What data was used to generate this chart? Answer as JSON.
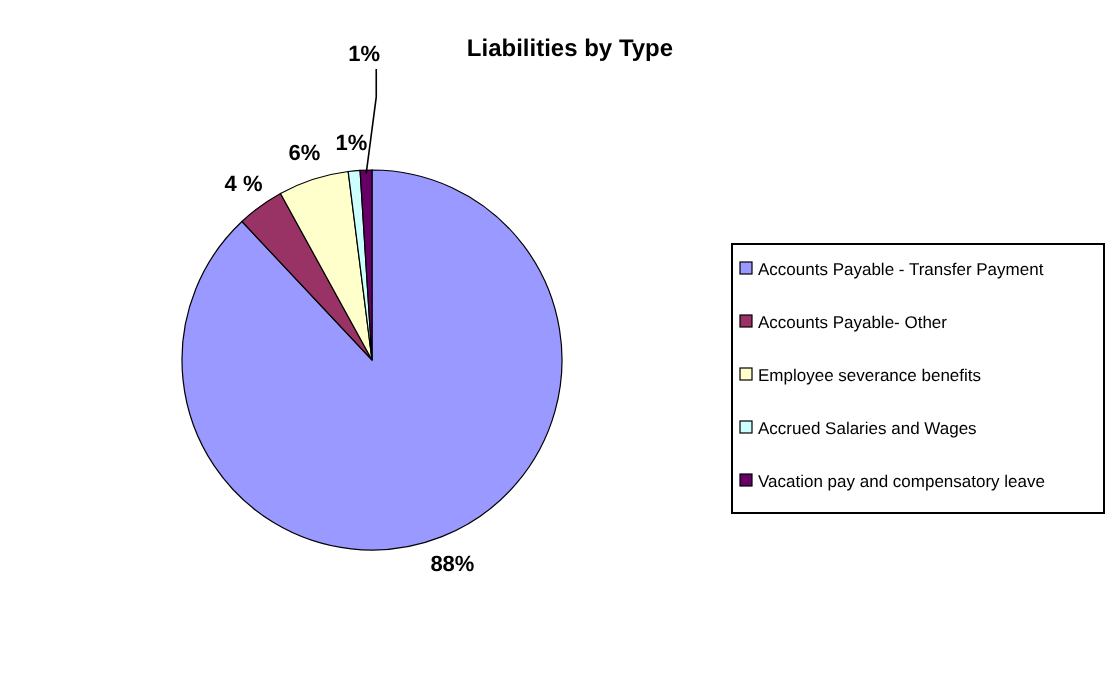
{
  "chart_data": {
    "type": "pie",
    "title": "Liabilities by Type",
    "categories": [
      "Accounts Payable - Transfer Payment",
      "Accounts Payable- Other",
      "Employee severance benefits",
      "Accrued Salaries and Wages",
      "Vacation pay and compensatory leave"
    ],
    "values": [
      88,
      4,
      6,
      1,
      1
    ],
    "colors": [
      "#9999ff",
      "#993366",
      "#ffffcc",
      "#ccffff",
      "#660066"
    ],
    "value_labels": [
      "88%",
      "4 %",
      "6%",
      "1%",
      "1%"
    ],
    "legend": "right"
  }
}
